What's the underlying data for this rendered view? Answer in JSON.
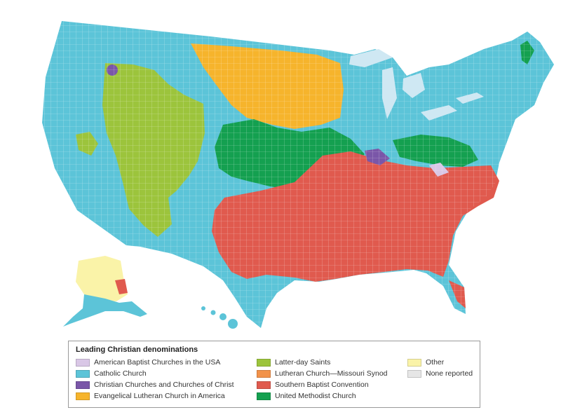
{
  "legend": {
    "title": "Leading Christian denominations",
    "items": [
      {
        "label": "American Baptist Churches in the USA",
        "color": "#d9c7e6"
      },
      {
        "label": "Catholic Church",
        "color": "#5cc4d8"
      },
      {
        "label": "Christian Churches and Churches of Christ",
        "color": "#7a56a8"
      },
      {
        "label": "Evangelical Lutheran Church in America",
        "color": "#f6b42c"
      },
      {
        "label": "Latter-day Saints",
        "color": "#9cc43c"
      },
      {
        "label": "Lutheran Church—Missouri Synod",
        "color": "#f2924a"
      },
      {
        "label": "Southern Baptist Convention",
        "color": "#e05a4e"
      },
      {
        "label": "United Methodist Church",
        "color": "#14a050"
      },
      {
        "label": "Other",
        "color": "#faf3a8"
      },
      {
        "label": "None reported",
        "color": "#e6e6e6"
      }
    ]
  },
  "map": {
    "water_color": "#cfe8f3",
    "border_color": "#ffffff",
    "regions": [
      {
        "name": "catholic-base",
        "denomination": "Catholic Church"
      },
      {
        "name": "latter-day-saints-west",
        "denomination": "Latter-day Saints"
      },
      {
        "name": "lutheran-upper-midwest",
        "denomination": "Evangelical Lutheran Church in America"
      },
      {
        "name": "methodist-midwest",
        "denomination": "United Methodist Church"
      },
      {
        "name": "southern-baptist-south",
        "denomination": "Southern Baptist Convention"
      },
      {
        "name": "alaska-other",
        "denomination": "Other"
      },
      {
        "name": "christian-churches-pockets",
        "denomination": "Christian Churches and Churches of Christ"
      }
    ]
  }
}
